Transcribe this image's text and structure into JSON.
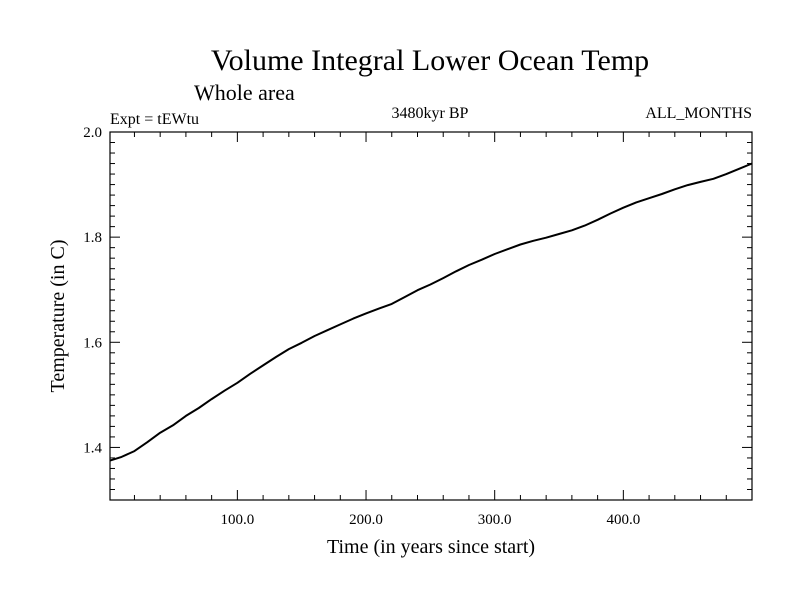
{
  "chart_data": {
    "type": "line",
    "title": "Volume Integral Lower Ocean Temp",
    "subtitle": "Whole area",
    "annotations": {
      "left": "Expt = tEWtu",
      "center": "3480kyr BP",
      "right": "ALL_MONTHS"
    },
    "xlabel": "Time (in years since start)",
    "ylabel": "Temperature (in C)",
    "xlim": [
      1,
      500
    ],
    "ylim": [
      1.3,
      2.0
    ],
    "x_ticks": [
      100,
      200,
      300,
      400
    ],
    "x_tick_labels": [
      "100.0",
      "200.0",
      "300.0",
      "400.0"
    ],
    "y_ticks": [
      1.4,
      1.6,
      1.8,
      2.0
    ],
    "y_tick_labels": [
      "1.4",
      "1.6",
      "1.8",
      "2.0"
    ],
    "grid": false,
    "series": [
      {
        "name": "tEWtu",
        "x": [
          1,
          10,
          20,
          30,
          40,
          50,
          60,
          70,
          80,
          90,
          100,
          110,
          120,
          130,
          140,
          150,
          160,
          170,
          180,
          190,
          200,
          210,
          220,
          230,
          240,
          250,
          260,
          270,
          280,
          290,
          300,
          310,
          320,
          330,
          340,
          350,
          360,
          370,
          380,
          390,
          400,
          410,
          420,
          430,
          440,
          450,
          460,
          470,
          480,
          490,
          500
        ],
        "values": [
          1.375,
          1.382,
          1.393,
          1.41,
          1.428,
          1.442,
          1.46,
          1.475,
          1.492,
          1.508,
          1.523,
          1.54,
          1.556,
          1.572,
          1.587,
          1.599,
          1.612,
          1.623,
          1.634,
          1.645,
          1.655,
          1.664,
          1.673,
          1.686,
          1.699,
          1.71,
          1.722,
          1.735,
          1.747,
          1.757,
          1.768,
          1.777,
          1.786,
          1.793,
          1.799,
          1.806,
          1.813,
          1.822,
          1.833,
          1.845,
          1.856,
          1.866,
          1.874,
          1.882,
          1.891,
          1.899,
          1.905,
          1.911,
          1.92,
          1.93,
          1.94
        ]
      }
    ]
  }
}
